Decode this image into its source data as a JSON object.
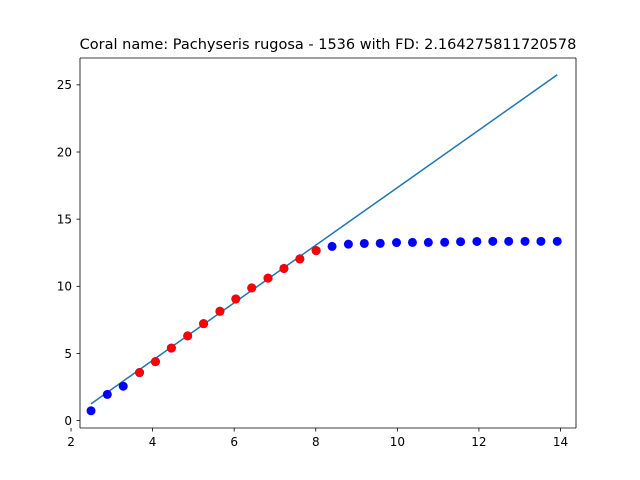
{
  "chart_data": {
    "type": "scatter",
    "title": "Coral name: Pachyseris rugosa - 1536 with FD: 2.164275811720578",
    "xlabel": "",
    "ylabel": "",
    "xlim": [
      2.22,
      14.38
    ],
    "ylim": [
      -0.55,
      27.0
    ],
    "x_ticks": [
      2,
      4,
      6,
      8,
      10,
      12,
      14
    ],
    "y_ticks": [
      0,
      5,
      10,
      15,
      20,
      25
    ],
    "grid": false,
    "legend": "none",
    "colors": {
      "blue_points": "#0000ff",
      "red_points": "#ff0000",
      "fit_line": "#1f77b4"
    },
    "series": [
      {
        "type": "scatter",
        "color": "#0000ff",
        "points": [
          [
            2.49,
            0.73
          ],
          [
            2.89,
            1.95
          ],
          [
            3.28,
            2.56
          ],
          [
            3.68,
            3.58
          ],
          [
            4.07,
            4.39
          ],
          [
            4.46,
            5.4
          ],
          [
            4.86,
            6.31
          ],
          [
            5.25,
            7.22
          ],
          [
            5.65,
            8.14
          ],
          [
            6.04,
            9.06
          ],
          [
            6.43,
            9.88
          ],
          [
            6.83,
            10.61
          ],
          [
            7.22,
            11.33
          ],
          [
            7.61,
            12.04
          ],
          [
            8.01,
            12.66
          ],
          [
            8.4,
            12.97
          ],
          [
            8.8,
            13.14
          ],
          [
            9.19,
            13.19
          ],
          [
            9.58,
            13.2
          ],
          [
            9.98,
            13.26
          ],
          [
            10.37,
            13.27
          ],
          [
            10.76,
            13.27
          ],
          [
            11.16,
            13.28
          ],
          [
            11.55,
            13.32
          ],
          [
            11.95,
            13.34
          ],
          [
            12.34,
            13.35
          ],
          [
            12.73,
            13.35
          ],
          [
            13.13,
            13.35
          ],
          [
            13.52,
            13.35
          ],
          [
            13.92,
            13.35
          ]
        ]
      },
      {
        "type": "scatter",
        "color": "#ff0000",
        "points": [
          [
            3.68,
            3.58
          ],
          [
            4.07,
            4.39
          ],
          [
            4.46,
            5.4
          ],
          [
            4.86,
            6.31
          ],
          [
            5.25,
            7.22
          ],
          [
            5.65,
            8.14
          ],
          [
            6.04,
            9.06
          ],
          [
            6.43,
            9.88
          ],
          [
            6.83,
            10.61
          ],
          [
            7.22,
            11.33
          ],
          [
            7.61,
            12.04
          ],
          [
            8.01,
            12.66
          ]
        ]
      },
      {
        "type": "line",
        "color": "#1f77b4",
        "points": [
          [
            2.49,
            1.25
          ],
          [
            13.92,
            25.75
          ]
        ]
      }
    ]
  }
}
